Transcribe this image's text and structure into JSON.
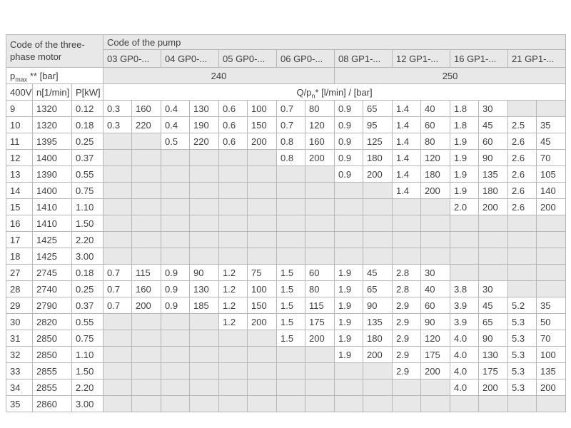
{
  "table": {
    "motor_header": "Code of the three-phase motor",
    "pump_header": "Code of the pump",
    "pump_codes": [
      "03 GP0-...",
      "04 GP0-...",
      "05 GP0-...",
      "06 GP0-...",
      "08 GP1-...",
      "12 GP1-...",
      "16 GP1-...",
      "21 GP1-..."
    ],
    "pmax_label": {
      "base": "p",
      "sub": "max",
      "rest": " ** [bar]"
    },
    "pmax_values": [
      "240",
      "250"
    ],
    "motor_columns": [
      "400V",
      "n[1/min]",
      "P[kW]"
    ],
    "q_label": {
      "pre": "Q/p",
      "sub": "n",
      "post": "* [l/min] / [bar]"
    },
    "colors": {
      "header_bg": "#e8e8e8",
      "empty_cell_bg": "#e8e8e8",
      "border": "#b7b7b7",
      "text": "#3e3e3e"
    },
    "rows": [
      {
        "motor": [
          "9",
          "1320",
          "0.12"
        ],
        "pumps": [
          "0.3",
          "160",
          "0.4",
          "130",
          "0.6",
          "100",
          "0.7",
          "80",
          "0.9",
          "65",
          "1.4",
          "40",
          "1.8",
          "30",
          "",
          ""
        ]
      },
      {
        "motor": [
          "10",
          "1320",
          "0.18"
        ],
        "pumps": [
          "0.3",
          "220",
          "0.4",
          "190",
          "0.6",
          "150",
          "0.7",
          "120",
          "0.9",
          "95",
          "1.4",
          "60",
          "1.8",
          "45",
          "2.5",
          "35"
        ]
      },
      {
        "motor": [
          "11",
          "1395",
          "0.25"
        ],
        "pumps": [
          "",
          "",
          "0.5",
          "220",
          "0.6",
          "200",
          "0.8",
          "160",
          "0.9",
          "125",
          "1.4",
          "80",
          "1.9",
          "60",
          "2.6",
          "45"
        ]
      },
      {
        "motor": [
          "12",
          "1400",
          "0.37"
        ],
        "pumps": [
          "",
          "",
          "",
          "",
          "",
          "",
          "0.8",
          "200",
          "0.9",
          "180",
          "1.4",
          "120",
          "1.9",
          "90",
          "2.6",
          "70"
        ]
      },
      {
        "motor": [
          "13",
          "1390",
          "0.55"
        ],
        "pumps": [
          "",
          "",
          "",
          "",
          "",
          "",
          "",
          "",
          "0.9",
          "200",
          "1.4",
          "180",
          "1.9",
          "135",
          "2.6",
          "105"
        ]
      },
      {
        "motor": [
          "14",
          "1400",
          "0.75"
        ],
        "pumps": [
          "",
          "",
          "",
          "",
          "",
          "",
          "",
          "",
          "",
          "",
          "1.4",
          "200",
          "1.9",
          "180",
          "2.6",
          "140"
        ]
      },
      {
        "motor": [
          "15",
          "1410",
          "1.10"
        ],
        "pumps": [
          "",
          "",
          "",
          "",
          "",
          "",
          "",
          "",
          "",
          "",
          "",
          "",
          "2.0",
          "200",
          "2.6",
          "200"
        ]
      },
      {
        "motor": [
          "16",
          "1410",
          "1.50"
        ],
        "pumps": [
          "",
          "",
          "",
          "",
          "",
          "",
          "",
          "",
          "",
          "",
          "",
          "",
          "",
          "",
          "",
          ""
        ]
      },
      {
        "motor": [
          "17",
          "1425",
          "2.20"
        ],
        "pumps": [
          "",
          "",
          "",
          "",
          "",
          "",
          "",
          "",
          "",
          "",
          "",
          "",
          "",
          "",
          "",
          ""
        ]
      },
      {
        "motor": [
          "18",
          "1425",
          "3.00"
        ],
        "pumps": [
          "",
          "",
          "",
          "",
          "",
          "",
          "",
          "",
          "",
          "",
          "",
          "",
          "",
          "",
          "",
          ""
        ]
      },
      {
        "motor": [
          "27",
          "2745",
          "0.18"
        ],
        "pumps": [
          "0.7",
          "115",
          "0.9",
          "90",
          "1.2",
          "75",
          "1.5",
          "60",
          "1.9",
          "45",
          "2.8",
          "30",
          "",
          "",
          "",
          ""
        ]
      },
      {
        "motor": [
          "28",
          "2740",
          "0.25"
        ],
        "pumps": [
          "0.7",
          "160",
          "0.9",
          "130",
          "1.2",
          "100",
          "1.5",
          "80",
          "1.9",
          "65",
          "2.8",
          "40",
          "3.8",
          "30",
          "",
          ""
        ]
      },
      {
        "motor": [
          "29",
          "2790",
          "0.37"
        ],
        "pumps": [
          "0.7",
          "200",
          "0.9",
          "185",
          "1.2",
          "150",
          "1.5",
          "115",
          "1.9",
          "90",
          "2.9",
          "60",
          "3.9",
          "45",
          "5.2",
          "35"
        ]
      },
      {
        "motor": [
          "30",
          "2820",
          "0.55"
        ],
        "pumps": [
          "",
          "",
          "",
          "",
          "1.2",
          "200",
          "1.5",
          "175",
          "1.9",
          "135",
          "2.9",
          "90",
          "3.9",
          "65",
          "5.3",
          "50"
        ]
      },
      {
        "motor": [
          "31",
          "2850",
          "0.75"
        ],
        "pumps": [
          "",
          "",
          "",
          "",
          "",
          "",
          "1.5",
          "200",
          "1.9",
          "180",
          "2.9",
          "120",
          "4.0",
          "90",
          "5.3",
          "70"
        ]
      },
      {
        "motor": [
          "32",
          "2850",
          "1.10"
        ],
        "pumps": [
          "",
          "",
          "",
          "",
          "",
          "",
          "",
          "",
          "1.9",
          "200",
          "2.9",
          "175",
          "4.0",
          "130",
          "5.3",
          "100"
        ]
      },
      {
        "motor": [
          "33",
          "2855",
          "1.50"
        ],
        "pumps": [
          "",
          "",
          "",
          "",
          "",
          "",
          "",
          "",
          "",
          "",
          "2.9",
          "200",
          "4.0",
          "175",
          "5.3",
          "135"
        ]
      },
      {
        "motor": [
          "34",
          "2855",
          "2.20"
        ],
        "pumps": [
          "",
          "",
          "",
          "",
          "",
          "",
          "",
          "",
          "",
          "",
          "",
          "",
          "4.0",
          "200",
          "5.3",
          "200"
        ]
      },
      {
        "motor": [
          "35",
          "2860",
          "3.00"
        ],
        "pumps": [
          "",
          "",
          "",
          "",
          "",
          "",
          "",
          "",
          "",
          "",
          "",
          "",
          "",
          "",
          "",
          ""
        ]
      }
    ]
  }
}
